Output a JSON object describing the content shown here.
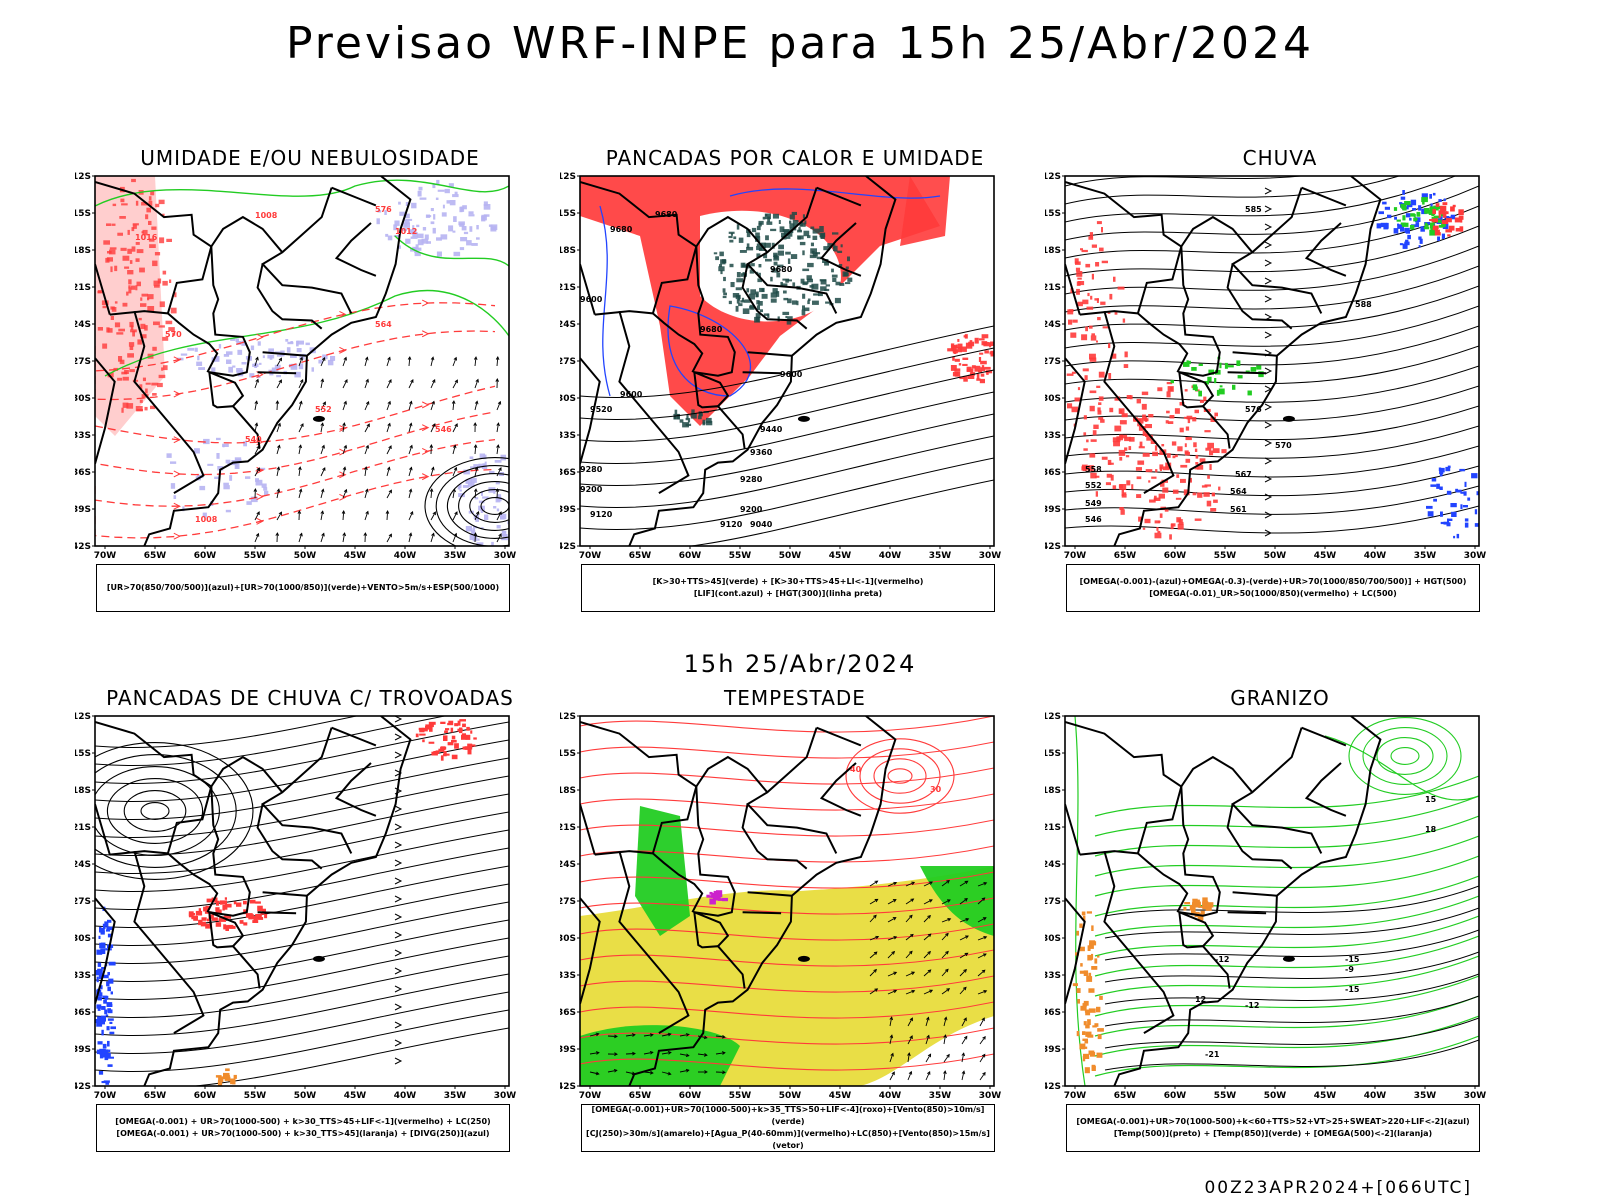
{
  "title": "Previsao WRF-INPE  para 15h 25/Abr/2024",
  "mid_title": "15h 25/Abr/2024",
  "footer": "00Z23APR2024+[066UTC]",
  "axes": {
    "lat_ticks": [
      "12S",
      "15S",
      "18S",
      "21S",
      "24S",
      "27S",
      "30S",
      "33S",
      "36S",
      "39S",
      "42S"
    ],
    "lon_ticks": [
      "70W",
      "65W",
      "60W",
      "55W",
      "50W",
      "45W",
      "40W",
      "35W",
      "30W"
    ]
  },
  "colors": {
    "border": "#000000",
    "red": "#ff3b3b",
    "green": "#22cc22",
    "blue": "#2244ff",
    "lavender": "#b7b4f2",
    "dark_teal": "#1f4a46",
    "yellow": "#e8dc3c",
    "orange": "#f08c2c",
    "purple": "#cc22cc"
  },
  "panels": [
    {
      "id": "umidade",
      "title": "UMIDADE E/OU NEBULOSIDADE",
      "legend": [
        "[UR>70(850/700/500)](azul)+[UR>70(1000/850)](verde)+VENTO>5m/s+ESP(500/1000)"
      ],
      "contour_labels": [
        "1008",
        "1012",
        "1016",
        "570",
        "576",
        "564",
        "552",
        "546",
        "540",
        "1008"
      ]
    },
    {
      "id": "pancadas_calor",
      "title": "PANCADAS POR CALOR E UMIDADE",
      "legend": [
        "[K>30+TTS>45](verde) + [K>30+TTS>45+LI<-1](vermelho)",
        "[LIF](cont.azul) + [HGT(300)](linha preta)"
      ],
      "contour_labels": [
        "9680",
        "9680",
        "9600",
        "9680",
        "9600",
        "9520",
        "9440",
        "9360",
        "9280",
        "9200",
        "9120",
        "9040",
        "9280",
        "9200",
        "9120",
        "9600",
        "9680"
      ]
    },
    {
      "id": "chuva",
      "title": "CHUVA",
      "legend": [
        "[OMEGA(-0.001)-(azul)+OMEGA(-0.3)-(verde)+UR>70(1000/850/700/500)] + HGT(500)",
        "[OMEGA(-0.01)_UR>50(1000/850)(vermelho) + LC(500)"
      ],
      "contour_labels": [
        "585",
        "588",
        "576",
        "570",
        "567",
        "564",
        "561",
        "558",
        "552",
        "549",
        "546"
      ]
    },
    {
      "id": "trovoadas",
      "title": "PANCADAS DE CHUVA C/ TROVOADAS",
      "legend": [
        "[OMEGA(-0.001) + UR>70(1000-500) + k>30_TTS>45+LIF<-1](vermelho) + LC(250)",
        "[OMEGA(-0.001) + UR>70(1000-500) + k>30_TTS>45](laranja) + [DIVG(250)](azul)"
      ],
      "contour_labels": []
    },
    {
      "id": "tempestade",
      "title": "TEMPESTADE",
      "legend": [
        "[OMEGA(-0.001)+UR>70(1000-500)+k>35_TTS>50+LIF<-4](roxo)+[Vento(850)>10m/s](verde)",
        "[CJ(250)>30m/s](amarelo)+[Agua_P(40-60mm)](vermelho)+LC(850)+[Vento(850)>15m/s](vetor)"
      ],
      "contour_labels": [
        "40",
        "30"
      ]
    },
    {
      "id": "granizo",
      "title": "GRANIZO",
      "legend": [
        "[OMEGA(-0.001)+UR>70(1000-500)+k<60+TTS>52+VT>25+SWEAT>220+LIF<-2](azul)",
        "[Temp(500)](preto) + [Temp(850)](verde) + [OMEGA(500)<-2](laranja)"
      ],
      "contour_labels": [
        "-9",
        "-12",
        "-15",
        "-12",
        "-21",
        "15",
        "18",
        "12",
        "-15"
      ]
    }
  ]
}
